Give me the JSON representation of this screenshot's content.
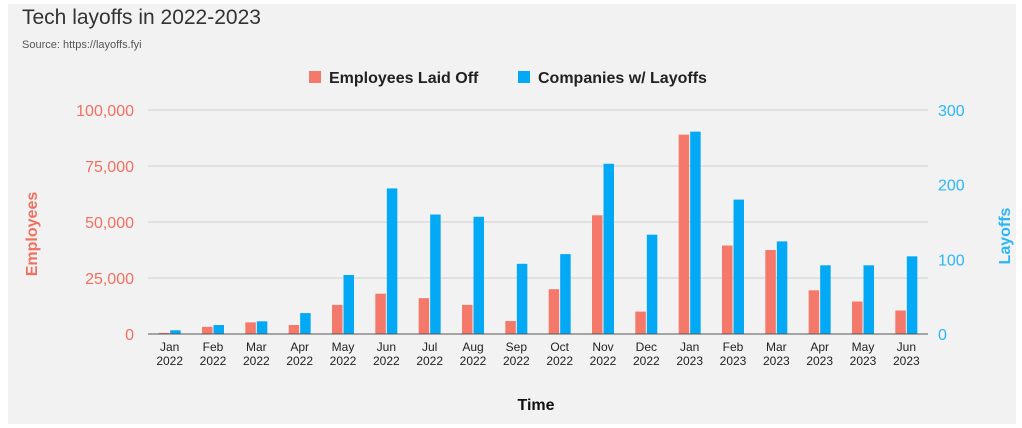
{
  "colors": {
    "employees": "#f4796b",
    "companies": "#03a9f4",
    "grid": "#cfcfcf",
    "left_axis": "#f07060",
    "right_axis": "#29b6f6"
  },
  "chart_data": {
    "type": "bar",
    "title": "Tech layoffs in 2022-2023",
    "subtitle": "Source: https://layoffs.fyi",
    "xlabel": "Time",
    "ylabel": "Employees",
    "y2label": "Layoffs",
    "ylim": [
      0,
      100000
    ],
    "y2lim": [
      0,
      300
    ],
    "yticks": [
      "0",
      "25,000",
      "50,000",
      "75,000",
      "100,000"
    ],
    "y2ticks": [
      "0",
      "100",
      "200",
      "300"
    ],
    "legend_position": "top-center",
    "grid": true,
    "categories": [
      [
        "Jan",
        "2022"
      ],
      [
        "Feb",
        "2022"
      ],
      [
        "Mar",
        "2022"
      ],
      [
        "Apr",
        "2022"
      ],
      [
        "May",
        "2022"
      ],
      [
        "Jun",
        "2022"
      ],
      [
        "Jul",
        "2022"
      ],
      [
        "Aug",
        "2022"
      ],
      [
        "Sep",
        "2022"
      ],
      [
        "Oct",
        "2022"
      ],
      [
        "Nov",
        "2022"
      ],
      [
        "Dec",
        "2022"
      ],
      [
        "Jan",
        "2023"
      ],
      [
        "Feb",
        "2023"
      ],
      [
        "Mar",
        "2023"
      ],
      [
        "Apr",
        "2023"
      ],
      [
        "May",
        "2023"
      ],
      [
        "Jun",
        "2023"
      ]
    ],
    "series": [
      {
        "name": "Employees Laid Off",
        "axis": "left",
        "values": [
          500,
          3200,
          5200,
          4000,
          13000,
          18000,
          16000,
          13000,
          5800,
          20000,
          53000,
          10000,
          89000,
          39500,
          37500,
          19500,
          14500,
          10500
        ]
      },
      {
        "name": "Companies w/ Layoffs",
        "axis": "right",
        "values": [
          5,
          12,
          17,
          28,
          79,
          195,
          160,
          157,
          94,
          107,
          228,
          133,
          271,
          180,
          124,
          92,
          92,
          104
        ]
      }
    ]
  }
}
